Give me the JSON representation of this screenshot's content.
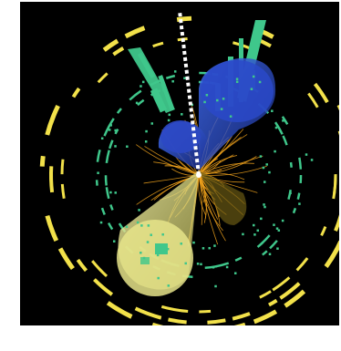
{
  "image": {
    "background": "#000000",
    "page_background": "#ffffff",
    "colors": {
      "calorimeter_yellow": "#f2e14a",
      "muon_green": "#3fc78b",
      "jet_blue": "#2f54d6",
      "jet_yellow": "#e9e78c",
      "tracks_orange": "#f0a21c",
      "missing_energy_white": "#ffffff"
    }
  }
}
